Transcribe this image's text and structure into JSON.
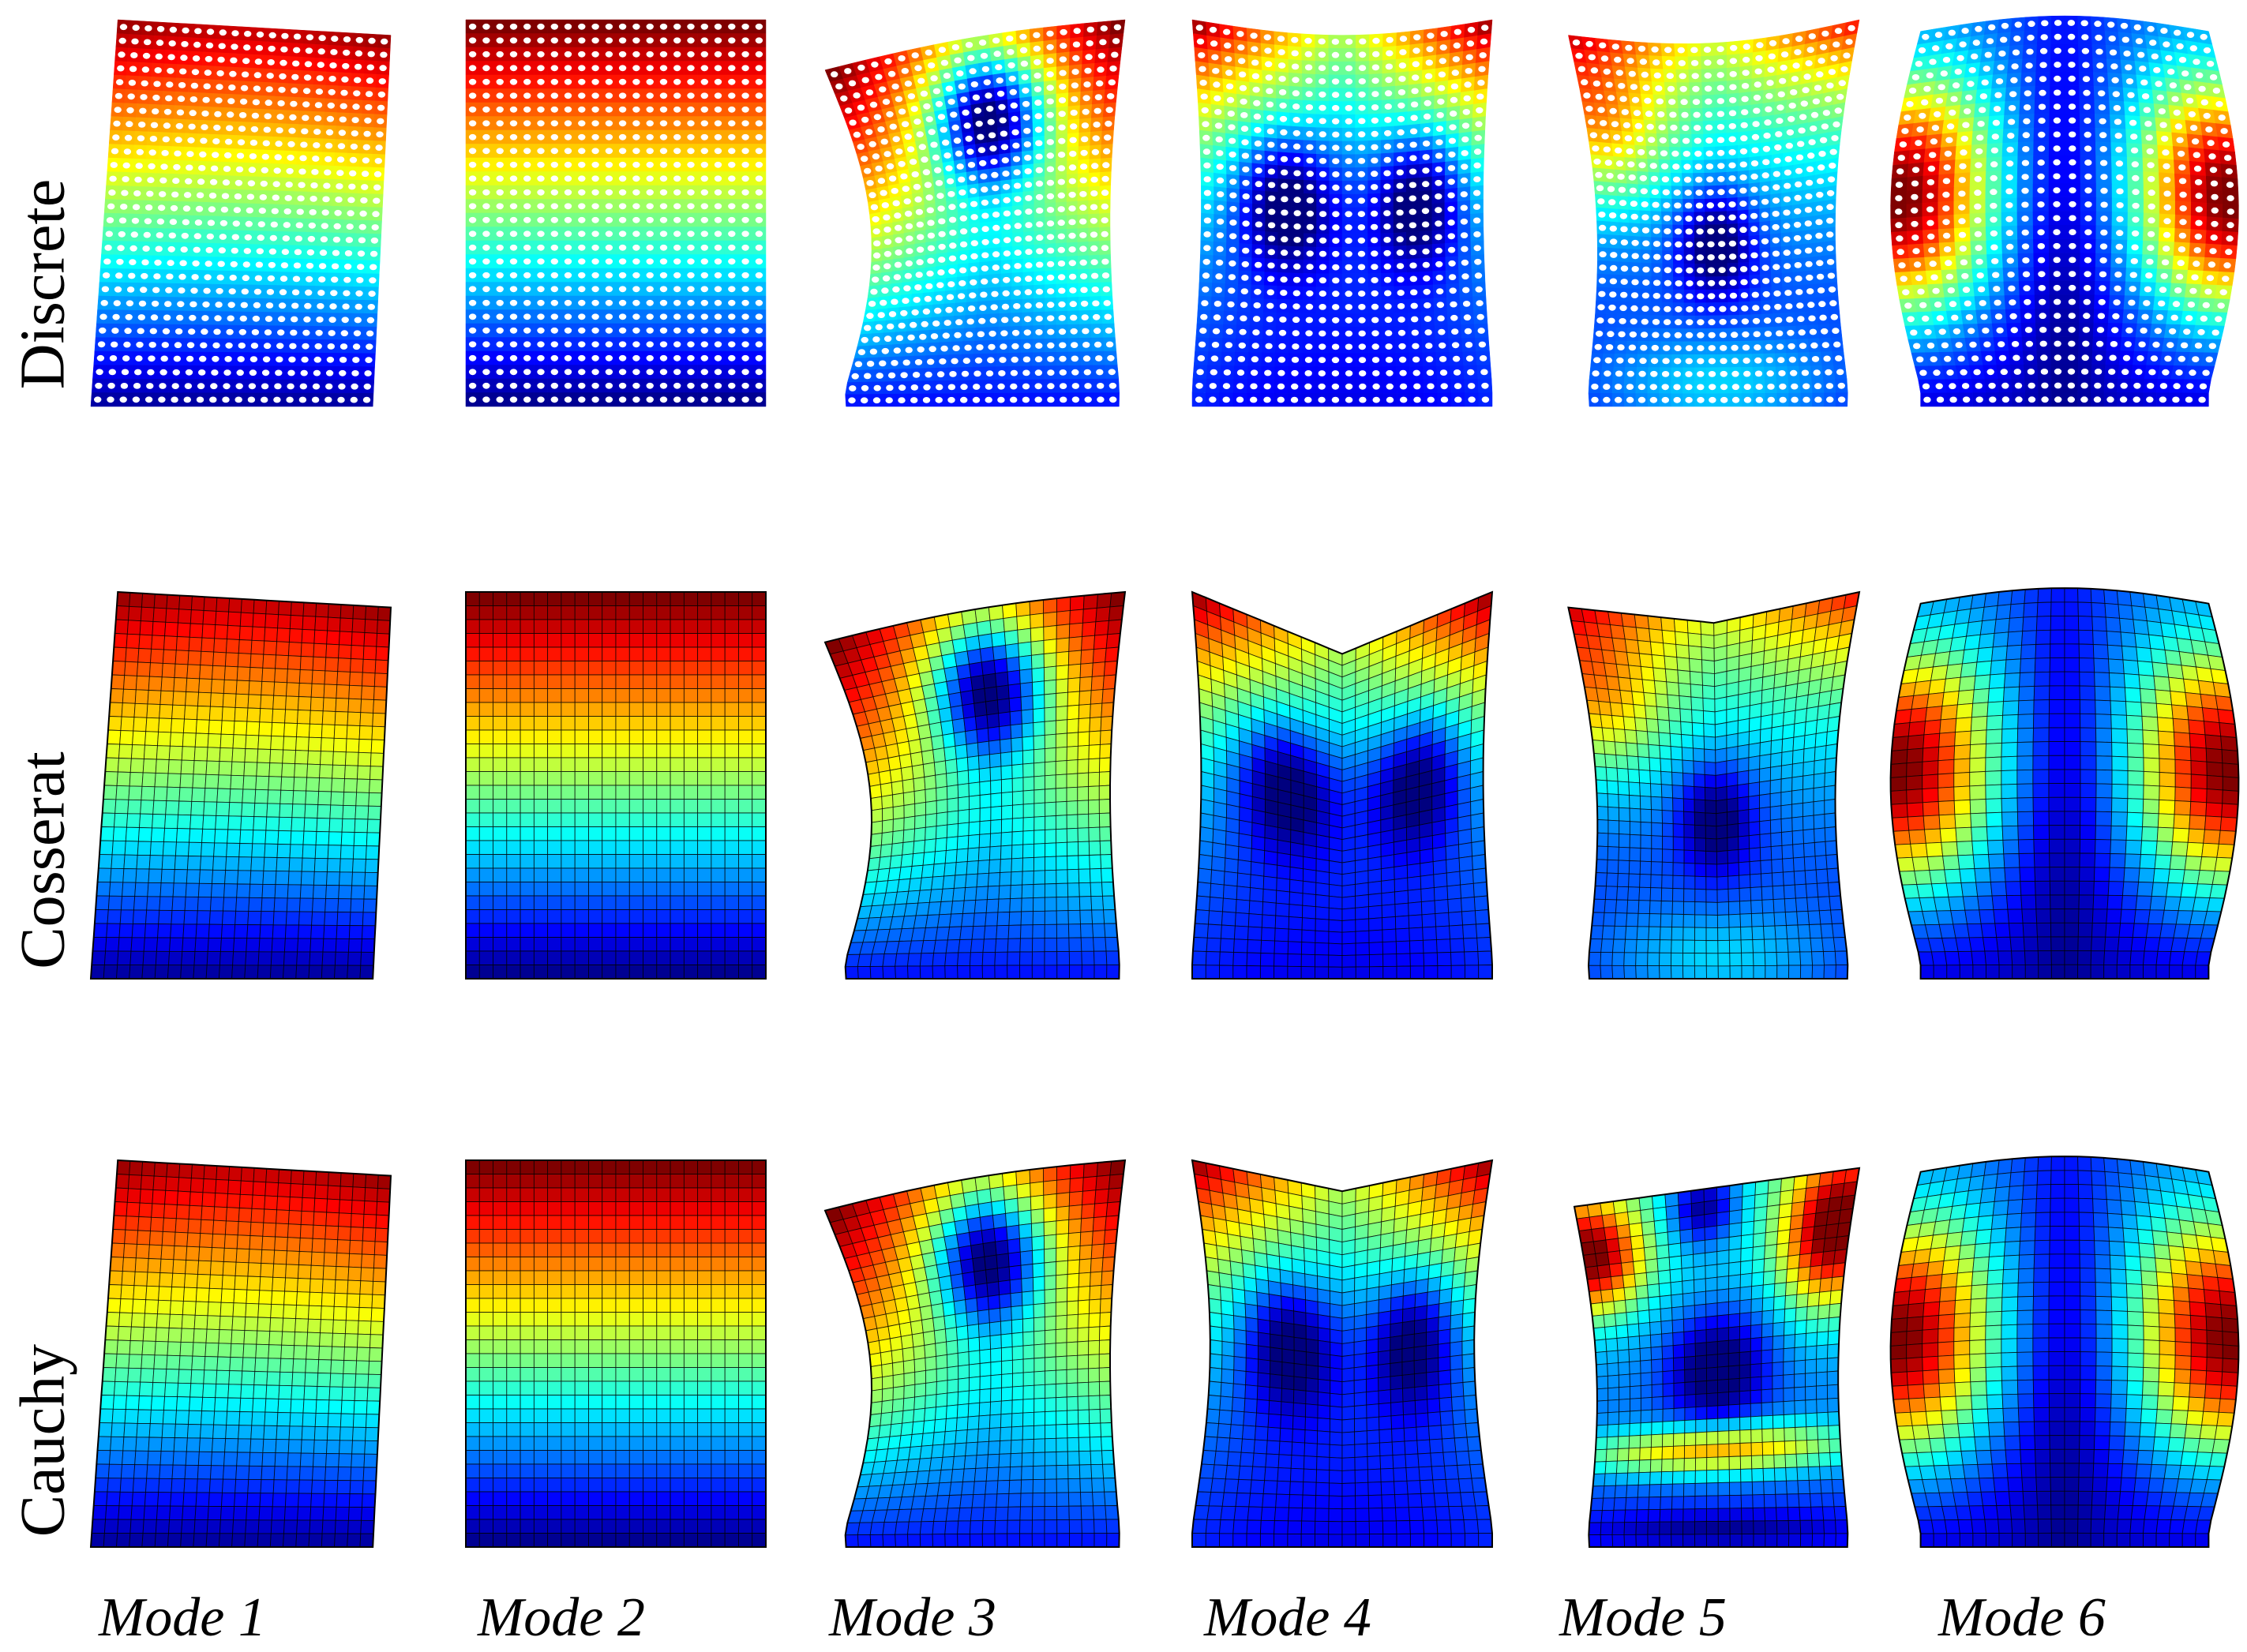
{
  "figure": {
    "rows": [
      {
        "key": "discrete",
        "label": "Discrete"
      },
      {
        "key": "cosserat",
        "label": "Cosserat"
      },
      {
        "key": "cauchy",
        "label": "Cauchy"
      }
    ],
    "modes": [
      "Mode 1",
      "Mode 2",
      "Mode 3",
      "Mode 4",
      "Mode 5",
      "Mode 6"
    ],
    "colormap": [
      "#00007f",
      "#0000ff",
      "#007fff",
      "#00ffff",
      "#7fff7f",
      "#ffff00",
      "#ff7f00",
      "#ff0000",
      "#7f0000"
    ]
  }
}
